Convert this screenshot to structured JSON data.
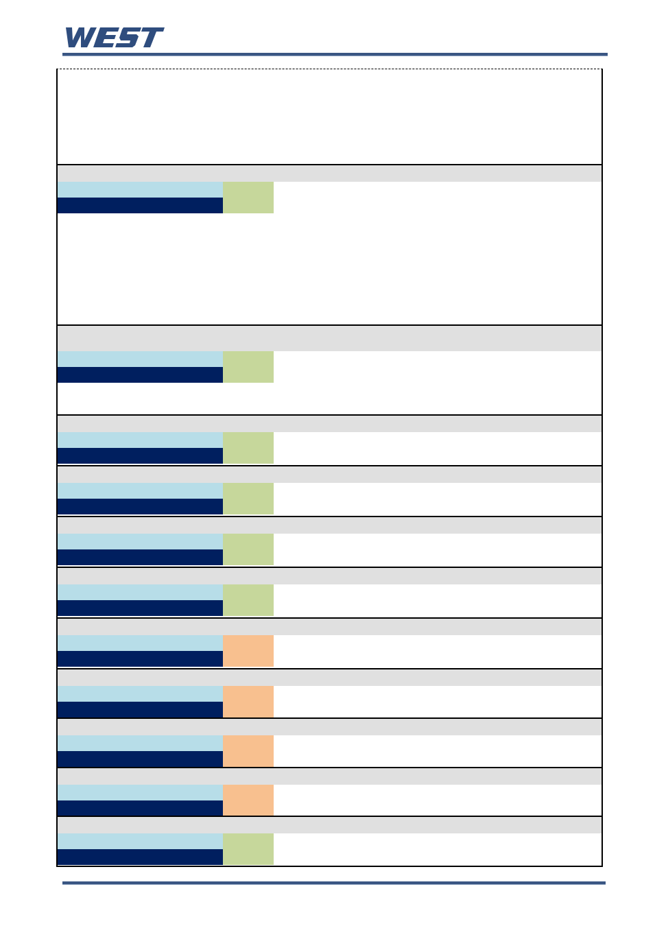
{
  "header": {
    "brand_logo_text": "WEST",
    "brand_color": "#2f4d7e"
  },
  "table": {
    "sections": [
      {
        "status": "green"
      },
      {
        "status": "green"
      },
      {
        "status": "green"
      },
      {
        "status": "green"
      },
      {
        "status": "green"
      },
      {
        "status": "green"
      },
      {
        "status": "orange"
      },
      {
        "status": "orange"
      },
      {
        "status": "orange"
      },
      {
        "status": "orange"
      },
      {
        "status": "green"
      }
    ]
  },
  "colors": {
    "section_bar": "#e0e0e0",
    "cell_light": "#b7dde8",
    "cell_dark": "#001f5f",
    "status_green": "#c6d79b",
    "status_orange": "#f8c08f",
    "rule": "#3a5683"
  }
}
